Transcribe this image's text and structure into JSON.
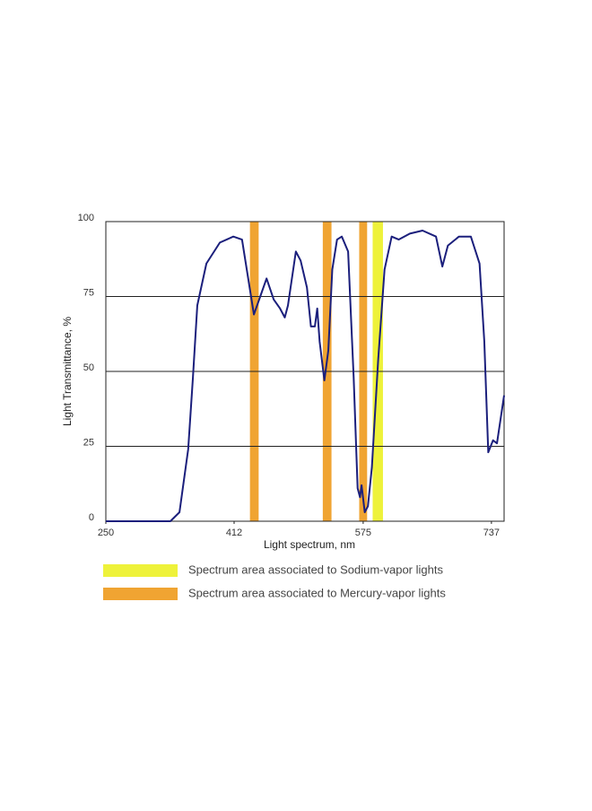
{
  "chart_data": {
    "type": "line",
    "x_label": "Light spectrum, nm",
    "y_label": "Light Transmittance, %",
    "xlim": [
      250,
      753
    ],
    "ylim": [
      0,
      100
    ],
    "xticks": [
      250,
      412,
      575,
      737
    ],
    "yticks": [
      0,
      25,
      50,
      75,
      100
    ],
    "grid": true,
    "bands": [
      {
        "name": "Spectrum area associated to Sodium-vapor lights",
        "color": "#eef23a",
        "ranges": [
          [
            587,
            600
          ]
        ]
      },
      {
        "name": "Spectrum area associated to Mercury-vapor lights",
        "color": "#f0a432",
        "ranges": [
          [
            432,
            443
          ],
          [
            524,
            535
          ],
          [
            570,
            580
          ]
        ]
      }
    ],
    "series": [
      {
        "color": "#1b1f7c",
        "x": [
          250,
          331.5,
          343,
          354,
          360,
          365.5,
          377,
          394,
          411,
          422,
          428,
          437,
          445,
          453,
          462,
          470,
          476,
          480,
          490,
          496,
          504,
          509,
          514,
          517,
          520,
          526,
          531,
          536,
          542,
          548,
          556,
          563,
          568,
          571,
          573,
          577,
          581,
          586,
          594,
          602,
          611,
          620,
          634,
          650,
          667,
          675,
          682,
          696,
          711,
          722,
          728,
          733,
          739,
          744,
          753
        ],
        "values": [
          0,
          0,
          3,
          24,
          48,
          72,
          86,
          93,
          95,
          94,
          84,
          69,
          75,
          81,
          74,
          71,
          68,
          72,
          90,
          87,
          78,
          65,
          65,
          71,
          60,
          47,
          57,
          84,
          94,
          95,
          90,
          48,
          11,
          8,
          12,
          3,
          5,
          18,
          54,
          84,
          95,
          94,
          96,
          97,
          95,
          85,
          92,
          95,
          95,
          86,
          60,
          23,
          27,
          26,
          42
        ]
      }
    ]
  }
}
